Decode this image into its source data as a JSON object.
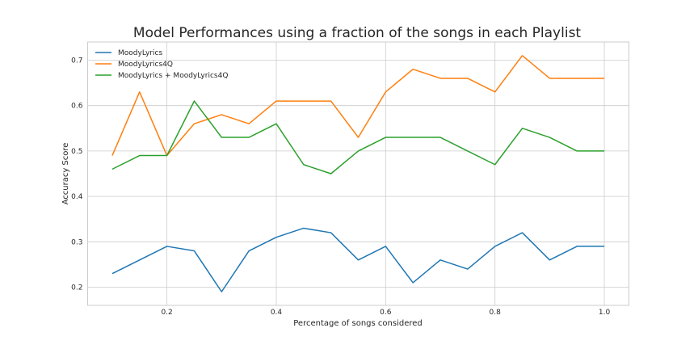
{
  "chart_data": {
    "type": "line",
    "title": "Model Performances using a fraction of the songs in each Playlist",
    "xlabel": "Percentage of songs considered",
    "ylabel": "Accuracy Score",
    "xlim": [
      0.055,
      1.045
    ],
    "ylim": [
      0.16,
      0.74
    ],
    "xticks": [
      0.2,
      0.4,
      0.6,
      0.8,
      1.0
    ],
    "xtick_labels": [
      "0.2",
      "0.4",
      "0.6",
      "0.8",
      "1.0"
    ],
    "yticks": [
      0.2,
      0.3,
      0.4,
      0.5,
      0.6,
      0.7
    ],
    "ytick_labels": [
      "0.2",
      "0.3",
      "0.4",
      "0.5",
      "0.6",
      "0.7"
    ],
    "grid": true,
    "legend_position": "top-left",
    "x": [
      0.1,
      0.15,
      0.2,
      0.25,
      0.3,
      0.35,
      0.4,
      0.45,
      0.5,
      0.55,
      0.6,
      0.65,
      0.7,
      0.75,
      0.8,
      0.85,
      0.9,
      0.95,
      1.0
    ],
    "series": [
      {
        "name": "MoodyLyrics",
        "color": "#1f77b4",
        "values": [
          0.23,
          0.26,
          0.29,
          0.28,
          0.19,
          0.28,
          0.31,
          0.33,
          0.32,
          0.26,
          0.29,
          0.21,
          0.26,
          0.24,
          0.29,
          0.32,
          0.26,
          0.29,
          0.29
        ]
      },
      {
        "name": "MoodyLyrics4Q",
        "color": "#ff7f0e",
        "values": [
          0.49,
          0.63,
          0.49,
          0.56,
          0.58,
          0.56,
          0.61,
          0.61,
          0.61,
          0.53,
          0.63,
          0.68,
          0.66,
          0.66,
          0.63,
          0.71,
          0.66,
          0.66,
          0.66
        ]
      },
      {
        "name": "MoodyLyrics + MoodyLyrics4Q",
        "color": "#2ca02c",
        "values": [
          0.46,
          0.49,
          0.49,
          0.61,
          0.53,
          0.53,
          0.56,
          0.47,
          0.45,
          0.5,
          0.53,
          0.53,
          0.53,
          0.5,
          0.47,
          0.55,
          0.53,
          0.5,
          0.5
        ]
      }
    ]
  }
}
